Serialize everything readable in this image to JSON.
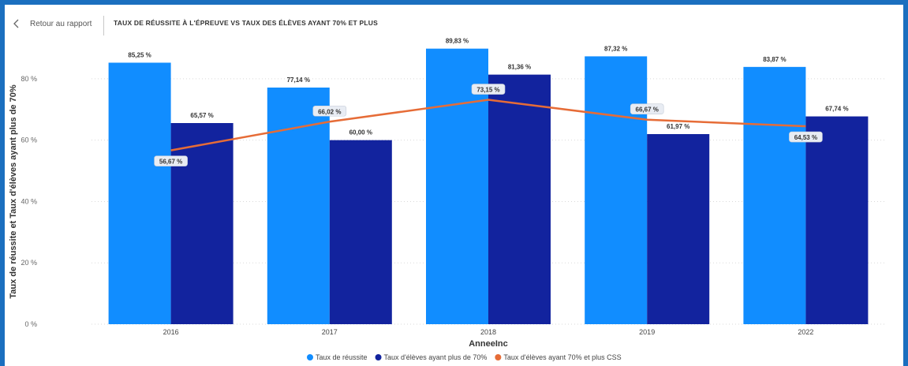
{
  "nav": {
    "back_label": "Retour au rapport",
    "title": "TAUX DE RÉUSSITE À L'ÉPREUVE VS TAUX DES ÉLÈVES AYANT 70% ET PLUS"
  },
  "colors": {
    "frame": "#1b6fbf",
    "series1": "#118dff",
    "series2": "#12239e",
    "series3": "#e66c37"
  },
  "chart_data": {
    "type": "bar",
    "title": "",
    "xlabel": "AnneeInc",
    "ylabel": "Taux de réussite et Taux d'élèves ayant plus de 70%",
    "ylim": [
      0,
      90
    ],
    "yticks": [
      0,
      20,
      40,
      60,
      80
    ],
    "ytick_labels": [
      "0 %",
      "20 %",
      "40 %",
      "60 %",
      "80 %"
    ],
    "grid": true,
    "legend_position": "bottom",
    "categories": [
      "2016",
      "2017",
      "2018",
      "2019",
      "2022"
    ],
    "series": [
      {
        "name": "Taux de réussite",
        "kind": "bar",
        "color": "#118dff",
        "values": [
          85.25,
          77.14,
          89.83,
          87.32,
          83.87
        ],
        "labels": [
          "85,25 %",
          "77,14 %",
          "89,83 %",
          "87,32 %",
          "83,87 %"
        ]
      },
      {
        "name": "Taux d'élèves ayant plus de 70%",
        "kind": "bar",
        "color": "#12239e",
        "values": [
          65.57,
          60.0,
          81.36,
          61.97,
          67.74
        ],
        "labels": [
          "65,57 %",
          "60,00 %",
          "81,36 %",
          "61,97 %",
          "67,74 %"
        ]
      },
      {
        "name": "Taux d'élèves ayant 70% et plus CSS",
        "kind": "line",
        "color": "#e66c37",
        "values": [
          56.67,
          66.02,
          73.15,
          66.67,
          64.53
        ],
        "labels": [
          "56,67 %",
          "66,02 %",
          "73,15 %",
          "66,67 %",
          "64,53 %"
        ]
      }
    ]
  }
}
